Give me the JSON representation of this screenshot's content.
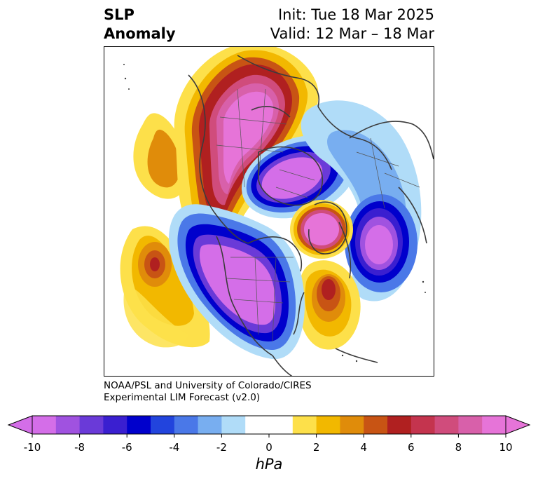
{
  "header": {
    "title_line1": "SLP",
    "title_line2": "Anomaly",
    "init_label": "Init: Tue 18 Mar 2025",
    "valid_label": "Valid: 12 Mar – 18 Mar"
  },
  "credit": {
    "line1": "NOAA/PSL and University of Colorado/CIRES",
    "line2": "Experimental LIM Forecast (v2.0)"
  },
  "colorbar": {
    "units": "hPa",
    "tick_labels": [
      "-10",
      "-8",
      "-6",
      "-4",
      "-2",
      "0",
      "2",
      "4",
      "6",
      "8",
      "10"
    ],
    "colors": [
      "#d46ee8",
      "#a052e0",
      "#6a3ad8",
      "#3a1fd0",
      "#0000cc",
      "#2244dd",
      "#4a78e8",
      "#78aef0",
      "#b0dcf8",
      "#ffffff",
      "#ffffff",
      "#fde04a",
      "#f2b800",
      "#e08c0a",
      "#c85414",
      "#b02020",
      "#c4344e",
      "#d04c7c",
      "#d860aa",
      "#e674d8"
    ],
    "extend_low_color": "#d46ee8",
    "extend_high_color": "#e674d8"
  },
  "map": {
    "projection": "north-polar",
    "anomaly_centers": [
      {
        "name": "Siberia / Arctic high",
        "sign": "positive",
        "peak_hpa": 10
      },
      {
        "name": "Arctic Ocean low",
        "sign": "negative",
        "peak_hpa": -10
      },
      {
        "name": "Greenland high",
        "sign": "positive",
        "peak_hpa": 10
      },
      {
        "name": "North Atlantic low",
        "sign": "negative",
        "peak_hpa": -10
      },
      {
        "name": "Central Atlantic high",
        "sign": "positive",
        "peak_hpa": 6
      },
      {
        "name": "North America low",
        "sign": "negative",
        "peak_hpa": -10
      },
      {
        "name": "North Pacific high",
        "sign": "positive",
        "peak_hpa": 6
      }
    ]
  }
}
